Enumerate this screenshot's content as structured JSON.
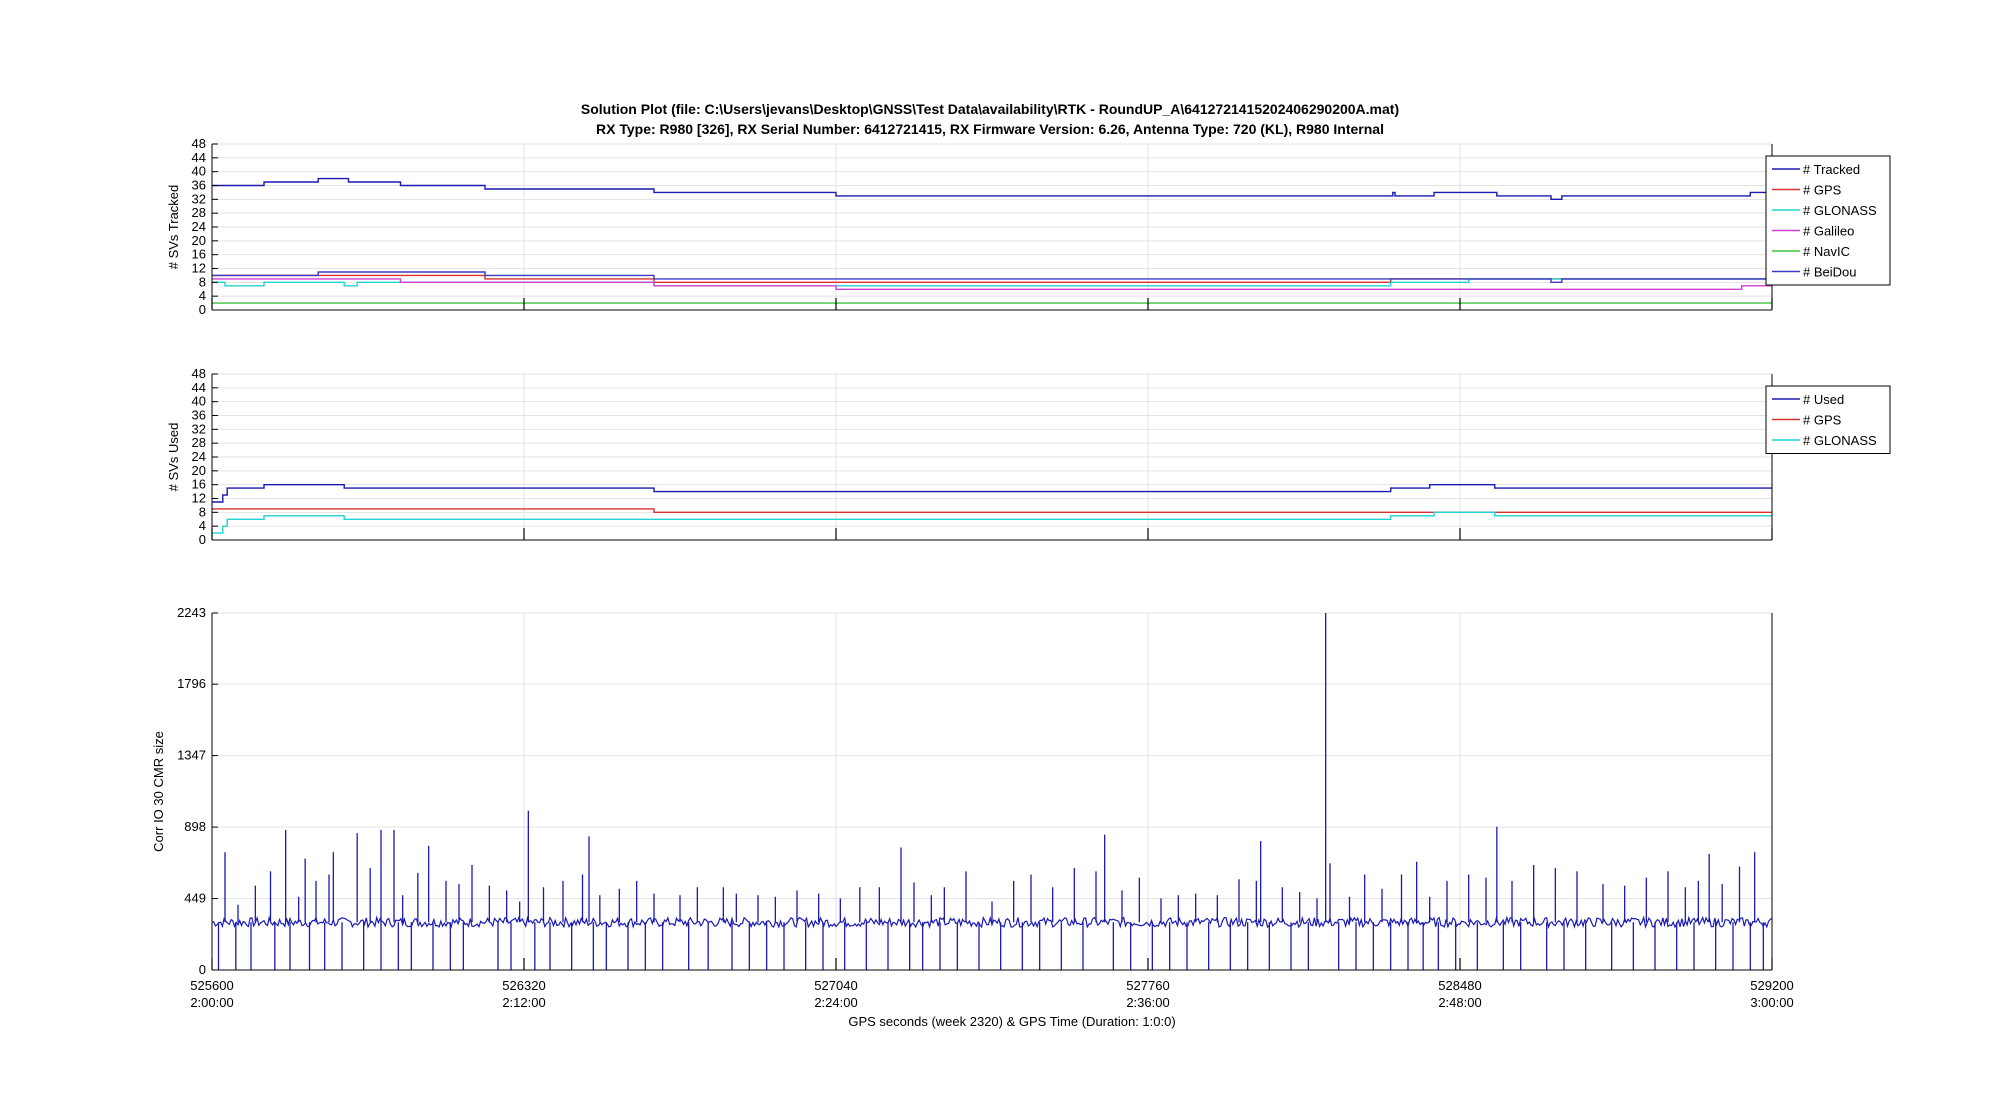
{
  "figure": {
    "title_line1": "Solution Plot (file: C:\\Users\\jevans\\Desktop\\GNSS\\Test Data\\availability\\RTK - RoundUP_A\\6412721415202406290200A.mat)",
    "title_line2": "RX Type: R980 [326], RX Serial Number: 6412721415, RX Firmware Version: 6.26, Antenna Type: 720 (KL), R980 Internal",
    "xlabel": "GPS seconds (week 2320) & GPS Time (Duration: 1:0:0)"
  },
  "chart_data": [
    {
      "type": "line",
      "ylabel": "# SVs Tracked",
      "xlim": [
        525600,
        529200
      ],
      "ylim": [
        0,
        48
      ],
      "yticks": [
        0,
        4,
        8,
        12,
        16,
        20,
        24,
        28,
        32,
        36,
        40,
        44,
        48
      ],
      "xticks": [
        525600,
        526320,
        527040,
        527760,
        528480,
        529200
      ],
      "grid": true,
      "legend_position": "right",
      "series": [
        {
          "name": "# Tracked",
          "color": "#1a1ab3",
          "points": [
            [
              525600,
              36
            ],
            [
              525720,
              36
            ],
            [
              525720,
              37
            ],
            [
              525845,
              37
            ],
            [
              525845,
              38
            ],
            [
              525915,
              38
            ],
            [
              525915,
              37
            ],
            [
              526035,
              37
            ],
            [
              526035,
              36
            ],
            [
              526230,
              36
            ],
            [
              526230,
              35
            ],
            [
              526620,
              35
            ],
            [
              526620,
              34
            ],
            [
              527040,
              34
            ],
            [
              527040,
              33
            ],
            [
              528325,
              33
            ],
            [
              528325,
              34
            ],
            [
              528330,
              34
            ],
            [
              528330,
              33
            ],
            [
              528420,
              33
            ],
            [
              528420,
              34
            ],
            [
              528500,
              34
            ],
            [
              528500,
              34
            ],
            [
              528565,
              34
            ],
            [
              528565,
              33
            ],
            [
              528690,
              33
            ],
            [
              528690,
              32
            ],
            [
              528715,
              32
            ],
            [
              528715,
              33
            ],
            [
              529150,
              33
            ],
            [
              529150,
              34
            ],
            [
              529200,
              34
            ]
          ]
        },
        {
          "name": "# GPS",
          "color": "#d93030",
          "points": [
            [
              525600,
              10
            ],
            [
              526230,
              10
            ],
            [
              526230,
              9
            ],
            [
              526620,
              9
            ],
            [
              526620,
              8
            ],
            [
              528320,
              8
            ],
            [
              528320,
              9
            ],
            [
              528540,
              9
            ],
            [
              528540,
              9
            ],
            [
              529200,
              9
            ]
          ]
        },
        {
          "name": "# GLONASS",
          "color": "#22d3d3",
          "points": [
            [
              525600,
              8
            ],
            [
              525630,
              8
            ],
            [
              525630,
              7
            ],
            [
              525720,
              7
            ],
            [
              525720,
              8
            ],
            [
              525905,
              8
            ],
            [
              525905,
              7
            ],
            [
              525935,
              7
            ],
            [
              525935,
              8
            ],
            [
              526320,
              8
            ],
            [
              526320,
              8
            ],
            [
              526620,
              8
            ],
            [
              526620,
              7
            ],
            [
              527040,
              7
            ],
            [
              527040,
              7
            ],
            [
              528320,
              7
            ],
            [
              528320,
              8
            ],
            [
              528420,
              8
            ],
            [
              528420,
              8
            ],
            [
              528500,
              8
            ],
            [
              528500,
              9
            ],
            [
              528690,
              9
            ],
            [
              528690,
              9
            ],
            [
              529200,
              9
            ]
          ]
        },
        {
          "name": "# Galileo",
          "color": "#d040d0",
          "points": [
            [
              525600,
              9
            ],
            [
              526035,
              9
            ],
            [
              526035,
              8
            ],
            [
              526620,
              8
            ],
            [
              526620,
              7
            ],
            [
              527040,
              7
            ],
            [
              527040,
              6
            ],
            [
              529130,
              6
            ],
            [
              529130,
              7
            ],
            [
              529200,
              7
            ]
          ]
        },
        {
          "name": "# NavIC",
          "color": "#40c040",
          "points": [
            [
              525600,
              2
            ],
            [
              529200,
              2
            ]
          ]
        },
        {
          "name": "# BeiDou",
          "color": "#3a3ac8",
          "points": [
            [
              525600,
              10
            ],
            [
              525845,
              10
            ],
            [
              525845,
              11
            ],
            [
              526230,
              11
            ],
            [
              526230,
              10
            ],
            [
              526620,
              10
            ],
            [
              526620,
              9
            ],
            [
              528320,
              9
            ],
            [
              528320,
              9
            ],
            [
              528690,
              9
            ],
            [
              528690,
              8
            ],
            [
              528715,
              8
            ],
            [
              528715,
              9
            ],
            [
              529200,
              9
            ]
          ]
        }
      ]
    },
    {
      "type": "line",
      "ylabel": "# SVs Used",
      "xlim": [
        525600,
        529200
      ],
      "ylim": [
        0,
        48
      ],
      "yticks": [
        0,
        4,
        8,
        12,
        16,
        20,
        24,
        28,
        32,
        36,
        40,
        44,
        48
      ],
      "xticks": [
        525600,
        526320,
        527040,
        527760,
        528480,
        529200
      ],
      "grid": true,
      "legend_position": "right",
      "series": [
        {
          "name": "# Used",
          "color": "#1a1ab3",
          "points": [
            [
              525600,
              11
            ],
            [
              525625,
              11
            ],
            [
              525625,
              13
            ],
            [
              525635,
              13
            ],
            [
              525635,
              15
            ],
            [
              525720,
              15
            ],
            [
              525720,
              16
            ],
            [
              525905,
              16
            ],
            [
              525905,
              15
            ],
            [
              526620,
              15
            ],
            [
              526620,
              14
            ],
            [
              528320,
              14
            ],
            [
              528320,
              15
            ],
            [
              528410,
              15
            ],
            [
              528410,
              16
            ],
            [
              528560,
              16
            ],
            [
              528560,
              15
            ],
            [
              529200,
              15
            ]
          ]
        },
        {
          "name": "# GPS",
          "color": "#d93030",
          "points": [
            [
              525600,
              9
            ],
            [
              526620,
              9
            ],
            [
              526620,
              8
            ],
            [
              528410,
              8
            ],
            [
              528410,
              8
            ],
            [
              528560,
              8
            ],
            [
              528560,
              8
            ],
            [
              529200,
              8
            ]
          ]
        },
        {
          "name": "# GLONASS",
          "color": "#22d3d3",
          "points": [
            [
              525600,
              2
            ],
            [
              525625,
              2
            ],
            [
              525625,
              4
            ],
            [
              525635,
              4
            ],
            [
              525635,
              6
            ],
            [
              525720,
              6
            ],
            [
              525720,
              7
            ],
            [
              525905,
              7
            ],
            [
              525905,
              6
            ],
            [
              526620,
              6
            ],
            [
              526620,
              6
            ],
            [
              528320,
              6
            ],
            [
              528320,
              7
            ],
            [
              528420,
              7
            ],
            [
              528420,
              8
            ],
            [
              528560,
              8
            ],
            [
              528560,
              7
            ],
            [
              529200,
              7
            ]
          ]
        }
      ]
    },
    {
      "type": "line",
      "ylabel": "Corr IO 30 CMR size",
      "xlim": [
        525600,
        529200
      ],
      "ylim": [
        0,
        2243
      ],
      "yticks": [
        0,
        449,
        898,
        1347,
        1796,
        2243
      ],
      "xticks": [
        525600,
        526320,
        527040,
        527760,
        528480,
        529200
      ],
      "xtick_labels": [
        "525600",
        "526320",
        "527040",
        "527760",
        "528480",
        "529200"
      ],
      "xtick_time_labels": [
        "2:00:00",
        "2:12:00",
        "2:24:00",
        "2:36:00",
        "2:48:00",
        "3:00:00"
      ],
      "grid": true,
      "baseline": 300,
      "color": "#1a1ab3",
      "spikes": [
        [
          525630,
          740
        ],
        [
          525660,
          410
        ],
        [
          525700,
          530
        ],
        [
          525735,
          620
        ],
        [
          525770,
          880
        ],
        [
          525800,
          460
        ],
        [
          525815,
          700
        ],
        [
          525840,
          560
        ],
        [
          525870,
          600
        ],
        [
          525880,
          740
        ],
        [
          525935,
          860
        ],
        [
          525965,
          640
        ],
        [
          525990,
          880
        ],
        [
          526020,
          880
        ],
        [
          526040,
          470
        ],
        [
          526075,
          610
        ],
        [
          526100,
          780
        ],
        [
          526140,
          560
        ],
        [
          526170,
          540
        ],
        [
          526200,
          660
        ],
        [
          526240,
          530
        ],
        [
          526280,
          500
        ],
        [
          526310,
          430
        ],
        [
          526330,
          1000
        ],
        [
          526365,
          520
        ],
        [
          526410,
          560
        ],
        [
          526455,
          600
        ],
        [
          526470,
          840
        ],
        [
          526495,
          470
        ],
        [
          526540,
          510
        ],
        [
          526580,
          560
        ],
        [
          526620,
          480
        ],
        [
          526680,
          470
        ],
        [
          526720,
          520
        ],
        [
          526780,
          520
        ],
        [
          526810,
          480
        ],
        [
          526860,
          470
        ],
        [
          526900,
          460
        ],
        [
          526950,
          500
        ],
        [
          527000,
          480
        ],
        [
          527050,
          450
        ],
        [
          527095,
          520
        ],
        [
          527140,
          520
        ],
        [
          527190,
          770
        ],
        [
          527220,
          550
        ],
        [
          527260,
          470
        ],
        [
          527290,
          520
        ],
        [
          527340,
          620
        ],
        [
          527400,
          430
        ],
        [
          527450,
          560
        ],
        [
          527490,
          600
        ],
        [
          527540,
          520
        ],
        [
          527590,
          640
        ],
        [
          527640,
          620
        ],
        [
          527660,
          850
        ],
        [
          527700,
          500
        ],
        [
          527740,
          580
        ],
        [
          527790,
          450
        ],
        [
          527830,
          470
        ],
        [
          527870,
          480
        ],
        [
          527920,
          470
        ],
        [
          527970,
          570
        ],
        [
          528010,
          560
        ],
        [
          528020,
          810
        ],
        [
          528070,
          520
        ],
        [
          528110,
          490
        ],
        [
          528150,
          450
        ],
        [
          528170,
          2243
        ],
        [
          528180,
          670
        ],
        [
          528225,
          460
        ],
        [
          528260,
          600
        ],
        [
          528300,
          510
        ],
        [
          528345,
          600
        ],
        [
          528380,
          680
        ],
        [
          528410,
          460
        ],
        [
          528450,
          560
        ],
        [
          528500,
          600
        ],
        [
          528540,
          580
        ],
        [
          528565,
          900
        ],
        [
          528600,
          560
        ],
        [
          528650,
          660
        ],
        [
          528700,
          640
        ],
        [
          528750,
          620
        ],
        [
          528810,
          540
        ],
        [
          528860,
          530
        ],
        [
          528910,
          580
        ],
        [
          528960,
          620
        ],
        [
          529000,
          520
        ],
        [
          529030,
          560
        ],
        [
          529055,
          730
        ],
        [
          529085,
          540
        ],
        [
          529125,
          650
        ],
        [
          529160,
          740
        ]
      ],
      "dips": [
        525615,
        525655,
        525690,
        525745,
        525780,
        525825,
        525860,
        525900,
        525950,
        525990,
        526030,
        526060,
        526110,
        526150,
        526180,
        526260,
        526290,
        526345,
        526380,
        526430,
        526480,
        526510,
        526560,
        526600,
        526640,
        526700,
        526745,
        526800,
        526840,
        526880,
        526920,
        526970,
        527010,
        527060,
        527110,
        527160,
        527210,
        527240,
        527280,
        527320,
        527370,
        527420,
        527470,
        527510,
        527560,
        527610,
        527680,
        527720,
        527770,
        527810,
        527850,
        527900,
        527950,
        527990,
        528040,
        528090,
        528130,
        528200,
        528240,
        528280,
        528320,
        528360,
        528395,
        528430,
        528470,
        528520,
        528580,
        528620,
        528680,
        528720,
        528770,
        528830,
        528880,
        528930,
        528980,
        529020,
        529070,
        529110,
        529150,
        529180
      ]
    }
  ],
  "legends": [
    [
      "# Tracked",
      "# GPS",
      "# GLONASS",
      "# Galileo",
      "# NavIC",
      "# BeiDou"
    ],
    [
      "# Used",
      "# GPS",
      "# GLONASS"
    ]
  ]
}
